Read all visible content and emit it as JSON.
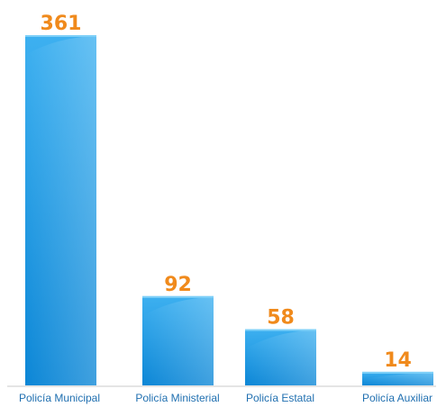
{
  "chart_data": {
    "type": "bar",
    "categories": [
      "Policía Municipal",
      "Policía Ministerial",
      "Policía Estatal",
      "Policía Auxiliar"
    ],
    "values": [
      361,
      92,
      58,
      14
    ],
    "title": "",
    "xlabel": "",
    "ylabel": "",
    "ylim": [
      0,
      361
    ],
    "grid": false,
    "legend": "none",
    "colors": {
      "bar_light": "#3db0f0",
      "bar_dark": "#0b86d6",
      "value_label": "#f08a1c",
      "category_label": "#1f6fb0",
      "axis": "#c8c8c8"
    }
  }
}
